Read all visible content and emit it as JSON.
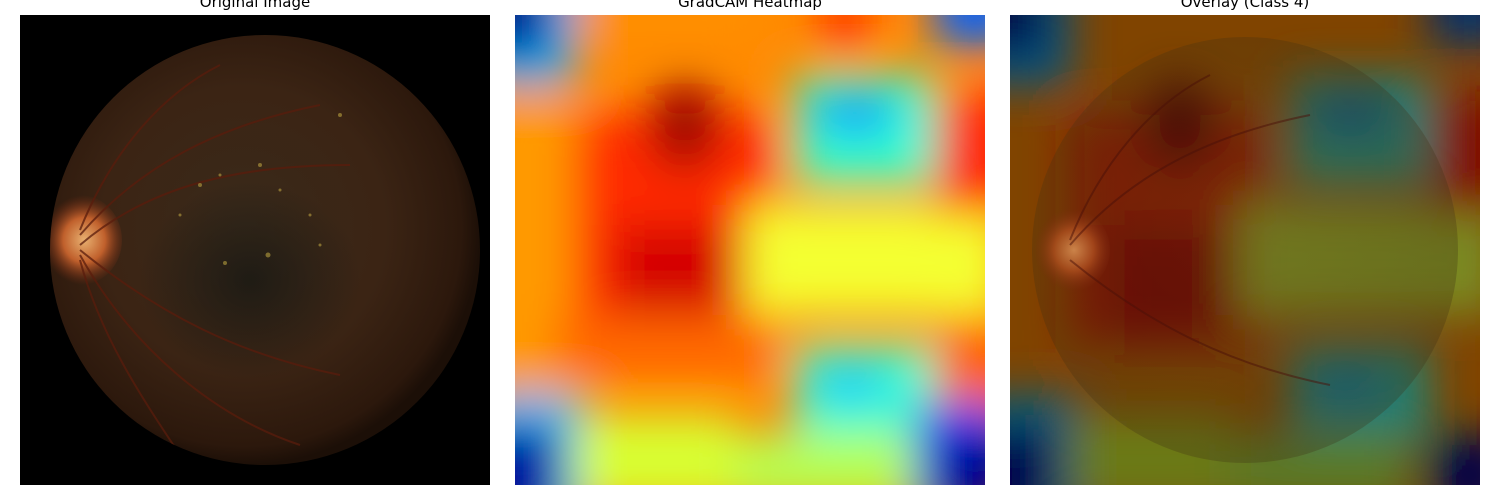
{
  "panels": [
    {
      "title": "Original Image"
    },
    {
      "title": "GradCAM Heatmap"
    },
    {
      "title": "Overlay (Class 4)"
    }
  ]
}
